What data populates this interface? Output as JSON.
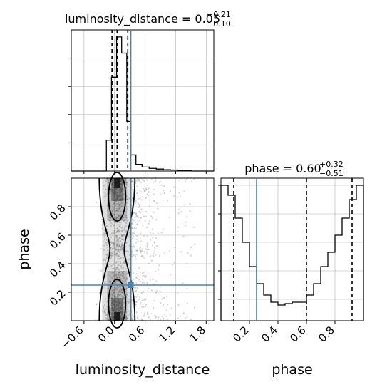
{
  "chart_data": [
    {
      "type": "histogram",
      "panel": "luminosity_distance-marginal",
      "title": {
        "param": "luminosity_distance",
        "eq": " = ",
        "median": "0.05",
        "plus": "+0.21",
        "minus": "−0.10"
      },
      "xlim": [
        -0.85,
        1.95
      ],
      "bin_edges": [
        -0.85,
        -0.72,
        -0.58,
        -0.44,
        -0.3,
        -0.16,
        -0.06,
        0.04,
        0.14,
        0.24,
        0.32,
        0.42,
        0.54,
        0.68,
        0.82,
        0.96,
        1.1,
        1.24,
        1.38,
        1.52,
        1.66,
        1.8,
        1.95
      ],
      "counts": [
        0,
        0,
        0,
        0,
        0,
        0.23,
        0.7,
        1.0,
        0.88,
        0.37,
        0.12,
        0.05,
        0.03,
        0.02,
        0.015,
        0.01,
        0.008,
        0.005,
        0.003,
        0,
        0,
        0
      ],
      "quantiles": [
        -0.05,
        0.05,
        0.26
      ],
      "truth": 0.32,
      "grid": true
    },
    {
      "type": "histogram",
      "panel": "phase-marginal",
      "title": {
        "param": "phase",
        "eq": " = ",
        "median": "0.60",
        "plus": "+0.32",
        "minus": "−0.51"
      },
      "xlim": [
        0.0,
        1.0
      ],
      "bin_edges": [
        0.0,
        0.05,
        0.1,
        0.15,
        0.2,
        0.25,
        0.3,
        0.35,
        0.4,
        0.45,
        0.5,
        0.55,
        0.6,
        0.65,
        0.7,
        0.75,
        0.8,
        0.85,
        0.9,
        0.95,
        1.0
      ],
      "counts": [
        0.95,
        0.88,
        0.72,
        0.55,
        0.38,
        0.26,
        0.18,
        0.13,
        0.11,
        0.12,
        0.13,
        0.13,
        0.18,
        0.26,
        0.38,
        0.48,
        0.6,
        0.72,
        0.85,
        0.95
      ],
      "quantiles": [
        0.09,
        0.6,
        0.92
      ],
      "truth": 0.25,
      "grid": true
    },
    {
      "type": "scatter",
      "panel": "joint-2d",
      "xlabel": "luminosity_distance",
      "ylabel": "phase",
      "xlim": [
        -0.85,
        1.95
      ],
      "ylim": [
        0.0,
        1.0
      ],
      "x_ticks": [
        "−0.6",
        "0.0",
        "0.6",
        "1.2",
        "1.8"
      ],
      "x_tick_values": [
        -0.6,
        0.0,
        0.6,
        1.2,
        1.8
      ],
      "y_ticks": [
        "0.2",
        "0.4",
        "0.6",
        "0.8"
      ],
      "y_tick_values": [
        0.2,
        0.4,
        0.6,
        0.8
      ],
      "phase_ticks": [
        "0.2",
        "0.4",
        "0.6",
        "0.8"
      ],
      "phase_tick_values": [
        0.2,
        0.4,
        0.6,
        0.8
      ],
      "truth": [
        0.32,
        0.25
      ],
      "grid": true
    }
  ],
  "colors": {
    "truth": "#4682b4",
    "line": "#000000",
    "grid": "#b0b0b0",
    "points": "#888888"
  }
}
